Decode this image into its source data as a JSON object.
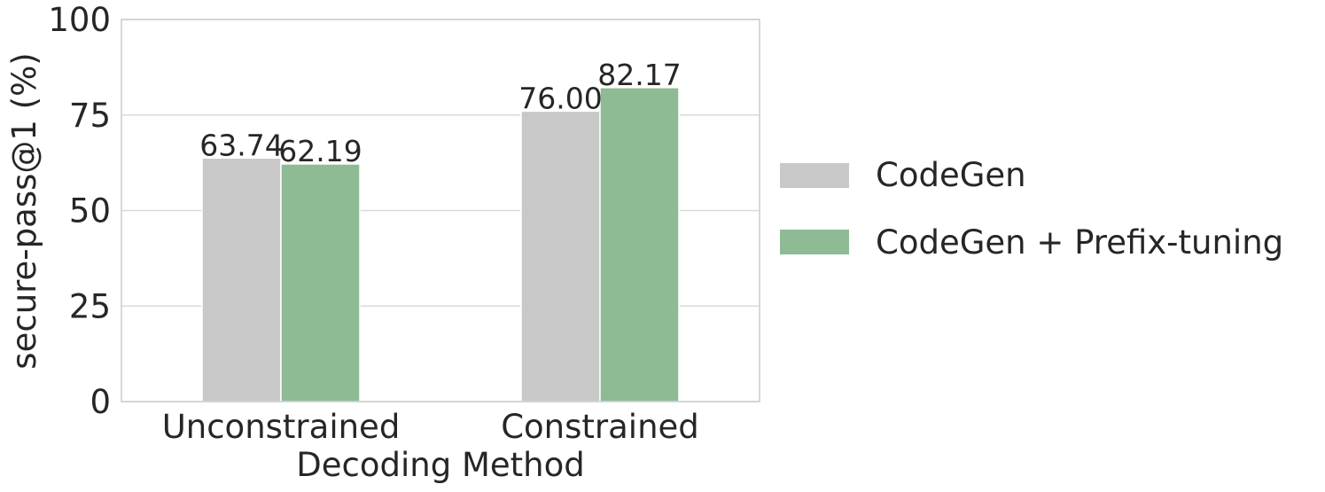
{
  "chart_data": {
    "type": "bar",
    "title": "",
    "xlabel": "Decoding Method",
    "ylabel": "secure-pass@1 (%)",
    "categories": [
      "Unconstrained",
      "Constrained"
    ],
    "series": [
      {
        "name": "CodeGen",
        "values": [
          63.74,
          76.0
        ],
        "labels": [
          "63.74",
          "76.00"
        ],
        "color": "#c8c8c8"
      },
      {
        "name": "CodeGen + Prefix-tuning",
        "values": [
          62.19,
          82.17
        ],
        "labels": [
          "62.19",
          "82.17"
        ],
        "color": "#8eba94"
      }
    ],
    "ylim": [
      0,
      100
    ],
    "yticks": [
      0,
      25,
      50,
      75,
      100
    ],
    "ytick_labels": [
      "0",
      "25",
      "50",
      "75",
      "100"
    ],
    "grid": true,
    "legend_position": "right"
  }
}
